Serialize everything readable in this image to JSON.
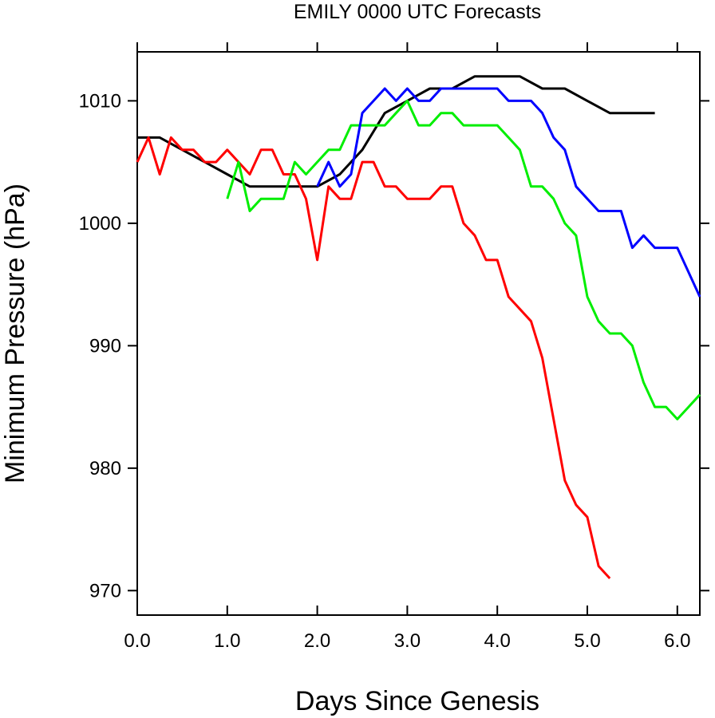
{
  "chart_data": {
    "type": "line",
    "title": "EMILY 0000 UTC Forecasts",
    "xlabel": "Days Since Genesis",
    "ylabel": "Minimum Pressure (hPa)",
    "xlim": [
      0,
      6.25
    ],
    "ylim": [
      968,
      1014
    ],
    "x_ticks": [
      0,
      1,
      2,
      3,
      4,
      5,
      6
    ],
    "x_tick_labels": [
      "0.0",
      "1.0",
      "2.0",
      "3.0",
      "4.0",
      "5.0",
      "6.0"
    ],
    "y_ticks": [
      970,
      980,
      990,
      1000,
      1010
    ],
    "y_tick_labels": [
      "970",
      "980",
      "990",
      "1000",
      "1010"
    ],
    "grid": false,
    "series": [
      {
        "color": "#000000",
        "x": [
          0,
          0.25,
          0.5,
          0.75,
          1.0,
          1.25,
          1.5,
          1.75,
          2.0,
          2.25,
          2.5,
          2.75,
          3.0,
          3.25,
          3.5,
          3.75,
          4.0,
          4.25,
          4.5,
          4.75,
          5.0,
          5.25,
          5.5,
          5.75
        ],
        "y": [
          1007,
          1007,
          1006,
          1005,
          1004,
          1003,
          1003,
          1003,
          1003,
          1004,
          1006,
          1009,
          1010,
          1011,
          1011,
          1012,
          1012,
          1012,
          1011,
          1011,
          1010,
          1009,
          1009,
          1009
        ]
      },
      {
        "color": "#ff0000",
        "x": [
          0,
          0.125,
          0.25,
          0.375,
          0.5,
          0.625,
          0.75,
          0.875,
          1.0,
          1.125,
          1.25,
          1.375,
          1.5,
          1.625,
          1.75,
          1.875,
          2.0,
          2.125,
          2.25,
          2.375,
          2.5,
          2.625,
          2.75,
          2.875,
          3.0,
          3.125,
          3.25,
          3.375,
          3.5,
          3.625,
          3.75,
          3.875,
          4.0,
          4.125,
          4.25,
          4.375,
          4.5,
          4.625,
          4.75,
          4.875,
          5.0,
          5.125,
          5.25
        ],
        "y": [
          1005,
          1007,
          1004,
          1007,
          1006,
          1006,
          1005,
          1005,
          1006,
          1005,
          1004,
          1006,
          1006,
          1004,
          1004,
          1002,
          997,
          1003,
          1002,
          1002,
          1005,
          1005,
          1003,
          1003,
          1002,
          1002,
          1002,
          1003,
          1003,
          1000,
          999,
          997,
          997,
          994,
          993,
          992,
          989,
          984,
          979,
          977,
          976,
          972,
          971
        ]
      },
      {
        "color": "#00ee00",
        "x": [
          1.0,
          1.125,
          1.25,
          1.375,
          1.5,
          1.625,
          1.75,
          1.875,
          2.0,
          2.125,
          2.25,
          2.375,
          2.5,
          2.625,
          2.75,
          2.875,
          3.0,
          3.125,
          3.25,
          3.375,
          3.5,
          3.625,
          3.75,
          3.875,
          4.0,
          4.125,
          4.25,
          4.375,
          4.5,
          4.625,
          4.75,
          4.875,
          5.0,
          5.125,
          5.25,
          5.375,
          5.5,
          5.625,
          5.75,
          5.875,
          6.0,
          6.125,
          6.25
        ],
        "y": [
          1002,
          1005,
          1001,
          1002,
          1002,
          1002,
          1005,
          1004,
          1005,
          1006,
          1006,
          1008,
          1008,
          1008,
          1008,
          1009,
          1010,
          1008,
          1008,
          1009,
          1009,
          1008,
          1008,
          1008,
          1008,
          1007,
          1006,
          1003,
          1003,
          1002,
          1000,
          999,
          994,
          992,
          991,
          991,
          990,
          987,
          985,
          985,
          984,
          985,
          986
        ]
      },
      {
        "color": "#0000ff",
        "x": [
          2.0,
          2.125,
          2.25,
          2.375,
          2.5,
          2.625,
          2.75,
          2.875,
          3.0,
          3.125,
          3.25,
          3.375,
          3.5,
          3.625,
          3.75,
          3.875,
          4.0,
          4.125,
          4.25,
          4.375,
          4.5,
          4.625,
          4.75,
          4.875,
          5.0,
          5.125,
          5.25,
          5.375,
          5.5,
          5.625,
          5.75,
          5.875,
          6.0,
          6.125,
          6.25
        ],
        "y": [
          1003,
          1005,
          1003,
          1004,
          1009,
          1010,
          1011,
          1010,
          1011,
          1010,
          1010,
          1011,
          1011,
          1011,
          1011,
          1011,
          1011,
          1010,
          1010,
          1010,
          1009,
          1007,
          1006,
          1003,
          1002,
          1001,
          1001,
          1001,
          998,
          999,
          998,
          998,
          998,
          996,
          994
        ]
      }
    ]
  }
}
